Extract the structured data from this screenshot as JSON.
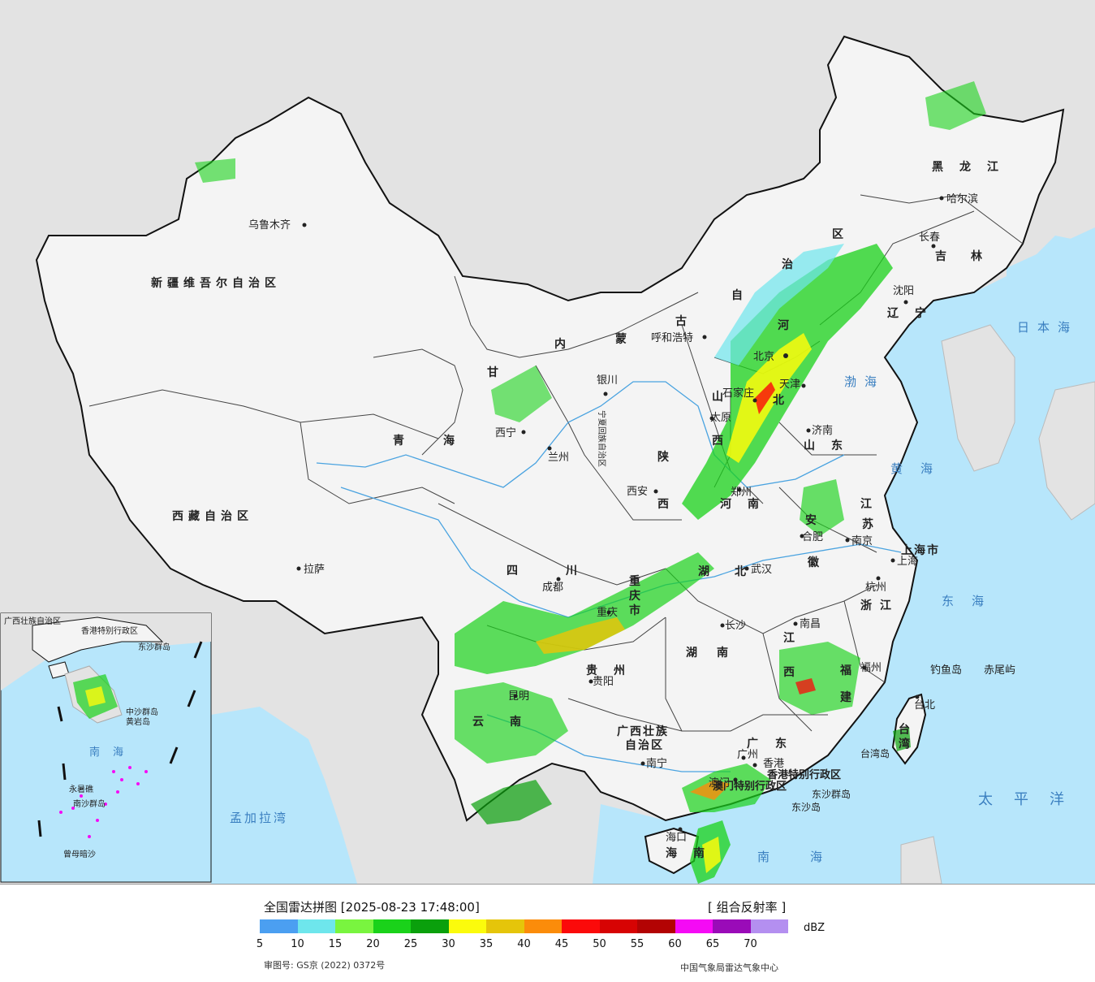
{
  "map": {
    "title": "全国雷达拼图",
    "timestamp": "[2025-08-23 17:48:00]",
    "product": "[ 组合反射率 ]",
    "unit": "dBZ",
    "approval_number": "审图号: GS京 (2022) 0372号",
    "source": "中国气象局雷达气象中心",
    "colors": {
      "sea": "#b7e6fb",
      "land_bg": "#e3e3e3",
      "china_land": "#f4f4f4",
      "border": "#111111",
      "river": "#4aa3e0"
    },
    "legend": [
      {
        "value": "5",
        "color": "#4b9ff1"
      },
      {
        "value": "10",
        "color": "#6ee6ec"
      },
      {
        "value": "15",
        "color": "#79f53f"
      },
      {
        "value": "20",
        "color": "#1ad21a"
      },
      {
        "value": "25",
        "color": "#0aa00c"
      },
      {
        "value": "30",
        "color": "#fbfb0c"
      },
      {
        "value": "35",
        "color": "#e5c50a"
      },
      {
        "value": "40",
        "color": "#fb8c0a"
      },
      {
        "value": "45",
        "color": "#fb0a0a"
      },
      {
        "value": "50",
        "color": "#d70303"
      },
      {
        "value": "55",
        "color": "#b30303"
      },
      {
        "value": "60",
        "color": "#f50af5"
      },
      {
        "value": "65",
        "color": "#9a0bb8"
      },
      {
        "value": "70",
        "color": "#b48ff0"
      }
    ],
    "provinces": [
      {
        "name": "新疆维吾尔自治区"
      },
      {
        "name": "西藏自治区"
      },
      {
        "name": "青海"
      },
      {
        "name": "甘"
      },
      {
        "name": "内"
      },
      {
        "name": "蒙"
      },
      {
        "name": "古"
      },
      {
        "name": "自"
      },
      {
        "name": "治"
      },
      {
        "name": "区"
      },
      {
        "name": "黑龙江"
      },
      {
        "name": "吉林"
      },
      {
        "name": "辽宁"
      },
      {
        "name": "河"
      },
      {
        "name": "北"
      },
      {
        "name": "山东"
      },
      {
        "name": "山"
      },
      {
        "name": "西"
      },
      {
        "name": "陕"
      },
      {
        "name": "西"
      },
      {
        "name": "河南"
      },
      {
        "name": "江"
      },
      {
        "name": "苏"
      },
      {
        "name": "安"
      },
      {
        "name": "徽"
      },
      {
        "name": "湖"
      },
      {
        "name": "北"
      },
      {
        "name": "四"
      },
      {
        "name": "川"
      },
      {
        "name": "重"
      },
      {
        "name": "庆"
      },
      {
        "name": "市"
      },
      {
        "name": "湖南"
      },
      {
        "name": "江"
      },
      {
        "name": "西"
      },
      {
        "name": "浙江"
      },
      {
        "name": "福"
      },
      {
        "name": "建"
      },
      {
        "name": "贵州"
      },
      {
        "name": "云南"
      },
      {
        "name": "广西壮族"
      },
      {
        "name": "自治区"
      },
      {
        "name": "广"
      },
      {
        "name": "东"
      },
      {
        "name": "宁夏回族自治区"
      },
      {
        "name": "上海市"
      },
      {
        "name": "海南"
      },
      {
        "name": "台湾"
      }
    ],
    "cities": [
      {
        "name": "乌鲁木齐"
      },
      {
        "name": "拉萨"
      },
      {
        "name": "西宁"
      },
      {
        "name": "兰州"
      },
      {
        "name": "银川"
      },
      {
        "name": "呼和浩特"
      },
      {
        "name": "哈尔滨"
      },
      {
        "name": "长春"
      },
      {
        "name": "沈阳"
      },
      {
        "name": "北京"
      },
      {
        "name": "天津"
      },
      {
        "name": "石家庄"
      },
      {
        "name": "太原"
      },
      {
        "name": "济南"
      },
      {
        "name": "郑州"
      },
      {
        "name": "西安"
      },
      {
        "name": "合肥"
      },
      {
        "name": "南京"
      },
      {
        "name": "上海"
      },
      {
        "name": "杭州"
      },
      {
        "name": "武汉"
      },
      {
        "name": "成都"
      },
      {
        "name": "重庆"
      },
      {
        "name": "长沙"
      },
      {
        "name": "南昌"
      },
      {
        "name": "福州"
      },
      {
        "name": "贵阳"
      },
      {
        "name": "昆明"
      },
      {
        "name": "南宁"
      },
      {
        "name": "广州"
      },
      {
        "name": "香港"
      },
      {
        "name": "澳门"
      },
      {
        "name": "海口"
      },
      {
        "name": "台北"
      },
      {
        "name": "钓鱼岛"
      },
      {
        "name": "赤尾屿"
      }
    ],
    "special_labels": [
      {
        "name": "香港特别行政区"
      },
      {
        "name": "澳门特别行政区"
      },
      {
        "name": "东沙群岛"
      },
      {
        "name": "东沙岛"
      },
      {
        "name": "台湾岛"
      }
    ],
    "seas": [
      {
        "name": "日本海"
      },
      {
        "name": "渤海"
      },
      {
        "name": "黄海"
      },
      {
        "name": "东海"
      },
      {
        "name": "太平洋"
      },
      {
        "name": "南海"
      },
      {
        "name": "孟加拉湾"
      }
    ],
    "inset_labels": [
      {
        "name": "南海"
      },
      {
        "name": "中沙群岛"
      },
      {
        "name": "黄岩岛"
      },
      {
        "name": "永暑礁"
      },
      {
        "name": "南沙群岛"
      },
      {
        "name": "曾母暗沙"
      },
      {
        "name": "广西壮族自治区"
      },
      {
        "name": "东沙群岛"
      },
      {
        "name": "香港特别行政区"
      }
    ]
  }
}
